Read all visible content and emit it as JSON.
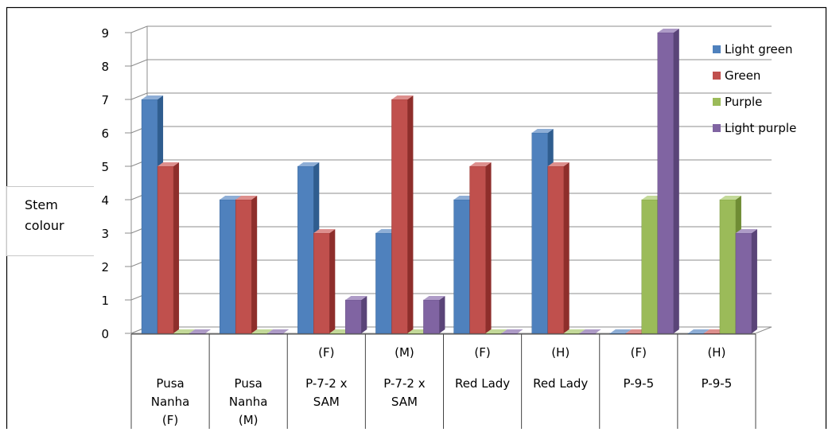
{
  "chart_data": {
    "type": "bar",
    "ylabel": "Stem colour",
    "ylabel_lines": [
      "Stem",
      "colour"
    ],
    "ylim": [
      0,
      9
    ],
    "yticks": [
      0,
      1,
      2,
      3,
      4,
      5,
      6,
      7,
      8,
      9
    ],
    "grid": true,
    "legend_position": "top-right",
    "categories": [
      [
        "Pusa",
        "Nanha",
        "(F)"
      ],
      [
        "Pusa",
        "Nanha",
        "(M)"
      ],
      [
        "(F)",
        "P-7-2 x",
        "SAM"
      ],
      [
        "(M)",
        "P-7-2 x",
        "SAM"
      ],
      [
        "(F)",
        "Red Lady"
      ],
      [
        "(H)",
        "Red Lady"
      ],
      [
        "(F)",
        "P-9-5"
      ],
      [
        "(H)",
        "P-9-5"
      ]
    ],
    "series": [
      {
        "name": "Light green",
        "color": "#4f81bd",
        "side": "#2f5d8f",
        "top": "#8eaed6",
        "values": [
          7,
          4,
          5,
          3,
          4,
          6,
          0,
          0
        ]
      },
      {
        "name": "Green",
        "color": "#c0504d",
        "side": "#8e2e2b",
        "top": "#dd8f8d",
        "values": [
          5,
          4,
          3,
          7,
          5,
          5,
          0,
          0
        ]
      },
      {
        "name": "Purple",
        "color": "#9bbb59",
        "side": "#6f8c34",
        "top": "#c3d999",
        "values": [
          0,
          0,
          0,
          0,
          0,
          0,
          4,
          4
        ]
      },
      {
        "name": "Light purple",
        "color": "#8064a2",
        "side": "#5a4478",
        "top": "#ae9bc7",
        "values": [
          0,
          0,
          1,
          1,
          0,
          0,
          9,
          3
        ]
      }
    ]
  }
}
